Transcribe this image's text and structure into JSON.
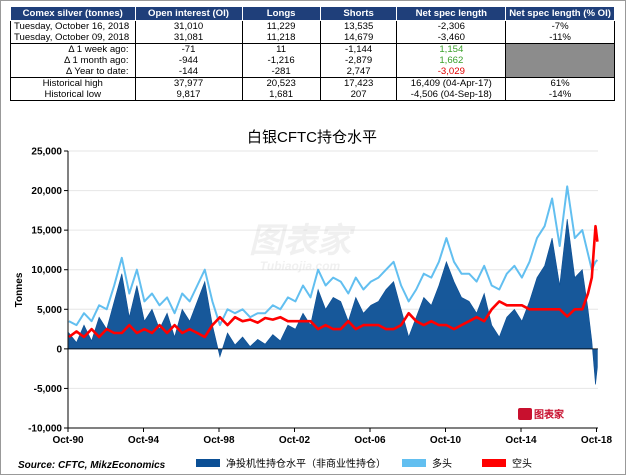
{
  "table": {
    "headers": [
      "Comex silver (tonnes)",
      "Open interest (OI)",
      "Longs",
      "Shorts",
      "Net spec length",
      "Net spec length (% OI)"
    ],
    "rows": [
      [
        "Tuesday, October 16, 2018",
        "31,010",
        "11,229",
        "13,535",
        "-2,306",
        "-7%"
      ],
      [
        "Tuesday, October 09, 2018",
        "31,081",
        "11,218",
        "14,679",
        "-3,460",
        "-11%"
      ],
      [
        "Δ 1 week ago:",
        "-71",
        "11",
        "-1,144",
        "1,154",
        ""
      ],
      [
        "Δ 1 month ago:",
        "-944",
        "-1,216",
        "-2,879",
        "1,662",
        ""
      ],
      [
        "Δ Year to date:",
        "-144",
        "-281",
        "2,747",
        "-3,029",
        ""
      ],
      [
        "Historical high",
        "37,977",
        "20,523",
        "17,423",
        "16,409  (04-Apr-17)",
        "61%"
      ],
      [
        "Historical low",
        "9,817",
        "1,681",
        "207",
        "-4,506  (04-Sep-18)",
        "-14%"
      ]
    ]
  },
  "colors": {
    "header_bg": "#1f3f7a",
    "net": "#0b4f95",
    "longs": "#62bff0",
    "shorts": "#ff0000",
    "green": "#3aa02a",
    "red": "#e00000"
  },
  "chart_data": {
    "type": "area",
    "title": "白银CFTC持仓水平",
    "ylabel": "Tonnes",
    "ylim": [
      -10000,
      25000
    ],
    "yticks": [
      "25,000",
      "20,000",
      "15,000",
      "10,000",
      "5,000",
      "0",
      "-5,000",
      "-10,000"
    ],
    "xticks": [
      "Oct-90",
      "Oct-94",
      "Oct-98",
      "Oct-02",
      "Oct-06",
      "Oct-10",
      "Oct-14",
      "Oct-18"
    ],
    "x_range": [
      1990.75,
      2018.83
    ],
    "series": [
      {
        "name": "净投机性持仓水平（非商业性持仓）",
        "kind": "area",
        "x": [
          1990.8,
          1991.2,
          1991.6,
          1992.0,
          1992.4,
          1992.8,
          1993.2,
          1993.6,
          1994.0,
          1994.4,
          1994.8,
          1995.2,
          1995.6,
          1996.0,
          1996.4,
          1996.8,
          1997.2,
          1997.6,
          1998.0,
          1998.4,
          1998.8,
          1999.2,
          1999.6,
          2000.0,
          2000.4,
          2000.8,
          2001.2,
          2001.6,
          2002.0,
          2002.4,
          2002.8,
          2003.2,
          2003.6,
          2004.0,
          2004.4,
          2004.8,
          2005.2,
          2005.6,
          2006.0,
          2006.4,
          2006.8,
          2007.2,
          2007.6,
          2008.0,
          2008.4,
          2008.8,
          2009.2,
          2009.6,
          2010.0,
          2010.4,
          2010.8,
          2011.2,
          2011.6,
          2012.0,
          2012.4,
          2012.8,
          2013.2,
          2013.6,
          2014.0,
          2014.4,
          2014.8,
          2015.2,
          2015.6,
          2016.0,
          2016.4,
          2016.8,
          2017.2,
          2017.6,
          2018.0,
          2018.3,
          2018.5,
          2018.7,
          2018.8
        ],
        "values": [
          2000,
          800,
          3000,
          1000,
          4000,
          2500,
          6000,
          9500,
          4000,
          8000,
          3500,
          5000,
          2500,
          4500,
          1500,
          5000,
          3500,
          6000,
          8500,
          3000,
          -1000,
          2000,
          500,
          1500,
          300,
          1200,
          600,
          1800,
          1000,
          3000,
          2500,
          4500,
          3000,
          7500,
          5000,
          6500,
          6000,
          3500,
          6500,
          4500,
          5500,
          6000,
          7500,
          8500,
          5000,
          1500,
          4000,
          6500,
          5500,
          8000,
          11000,
          8500,
          6500,
          6000,
          4500,
          7000,
          3000,
          1500,
          4000,
          5000,
          3500,
          6000,
          9000,
          10500,
          14000,
          8000,
          16409,
          9000,
          10000,
          5000,
          1000,
          -4506,
          -2306
        ]
      },
      {
        "name": "多头",
        "kind": "line",
        "x": [
          1990.8,
          1991.2,
          1991.6,
          1992.0,
          1992.4,
          1992.8,
          1993.2,
          1993.6,
          1994.0,
          1994.4,
          1994.8,
          1995.2,
          1995.6,
          1996.0,
          1996.4,
          1996.8,
          1997.2,
          1997.6,
          1998.0,
          1998.4,
          1998.8,
          1999.2,
          1999.6,
          2000.0,
          2000.4,
          2000.8,
          2001.2,
          2001.6,
          2002.0,
          2002.4,
          2002.8,
          2003.2,
          2003.6,
          2004.0,
          2004.4,
          2004.8,
          2005.2,
          2005.6,
          2006.0,
          2006.4,
          2006.8,
          2007.2,
          2007.6,
          2008.0,
          2008.4,
          2008.8,
          2009.2,
          2009.6,
          2010.0,
          2010.4,
          2010.8,
          2011.2,
          2011.6,
          2012.0,
          2012.4,
          2012.8,
          2013.2,
          2013.6,
          2014.0,
          2014.4,
          2014.8,
          2015.2,
          2015.6,
          2016.0,
          2016.4,
          2016.8,
          2017.2,
          2017.6,
          2018.0,
          2018.3,
          2018.5,
          2018.7,
          2018.8
        ],
        "values": [
          3500,
          3000,
          4500,
          3500,
          5500,
          5000,
          8000,
          11500,
          7000,
          10000,
          6000,
          7000,
          5500,
          6500,
          4500,
          7000,
          6000,
          8000,
          10000,
          6000,
          3000,
          5000,
          4500,
          5000,
          4000,
          4500,
          4500,
          5500,
          5000,
          6500,
          6000,
          8000,
          6500,
          10000,
          8000,
          9000,
          8500,
          7000,
          9000,
          7500,
          8500,
          9000,
          10000,
          11000,
          8000,
          6000,
          7500,
          9500,
          9000,
          11000,
          14000,
          11000,
          9500,
          9500,
          8500,
          10500,
          8000,
          7500,
          9500,
          10500,
          9000,
          11000,
          14000,
          15500,
          19000,
          13000,
          20523,
          14000,
          15000,
          12000,
          10000,
          11000,
          11229
        ]
      },
      {
        "name": "空头",
        "kind": "line",
        "x": [
          1990.8,
          1991.2,
          1991.6,
          1992.0,
          1992.4,
          1992.8,
          1993.2,
          1993.6,
          1994.0,
          1994.4,
          1994.8,
          1995.2,
          1995.6,
          1996.0,
          1996.4,
          1996.8,
          1997.2,
          1997.6,
          1998.0,
          1998.4,
          1998.8,
          1999.2,
          1999.6,
          2000.0,
          2000.4,
          2000.8,
          2001.2,
          2001.6,
          2002.0,
          2002.4,
          2002.8,
          2003.2,
          2003.6,
          2004.0,
          2004.4,
          2004.8,
          2005.2,
          2005.6,
          2006.0,
          2006.4,
          2006.8,
          2007.2,
          2007.6,
          2008.0,
          2008.4,
          2008.8,
          2009.2,
          2009.6,
          2010.0,
          2010.4,
          2010.8,
          2011.2,
          2011.6,
          2012.0,
          2012.4,
          2012.8,
          2013.2,
          2013.6,
          2014.0,
          2014.4,
          2014.8,
          2015.2,
          2015.6,
          2016.0,
          2016.4,
          2016.8,
          2017.2,
          2017.6,
          2018.0,
          2018.3,
          2018.5,
          2018.7,
          2018.8
        ],
        "values": [
          1500,
          2200,
          1500,
          2500,
          1500,
          2500,
          2000,
          2000,
          3000,
          2000,
          2500,
          2000,
          3000,
          2000,
          3000,
          2000,
          2500,
          2000,
          1500,
          3000,
          4000,
          3000,
          4000,
          3500,
          3700,
          3300,
          3900,
          3700,
          4000,
          3500,
          3500,
          3500,
          3500,
          2500,
          3000,
          2500,
          2500,
          3500,
          2500,
          3000,
          3000,
          3000,
          2500,
          2500,
          3000,
          4500,
          3500,
          3000,
          3500,
          3000,
          3000,
          2500,
          3000,
          3500,
          4000,
          3500,
          5000,
          6000,
          5500,
          5500,
          5500,
          5000,
          5000,
          5000,
          5000,
          5000,
          4100,
          5000,
          5000,
          7000,
          9000,
          15500,
          13535
        ]
      }
    ]
  },
  "labels": {
    "source": "Source: CFTC, MikzEconomics",
    "watermark_cn": "图表家",
    "watermark_en": "Tubiaojia.com",
    "logo_text": "图表家"
  }
}
